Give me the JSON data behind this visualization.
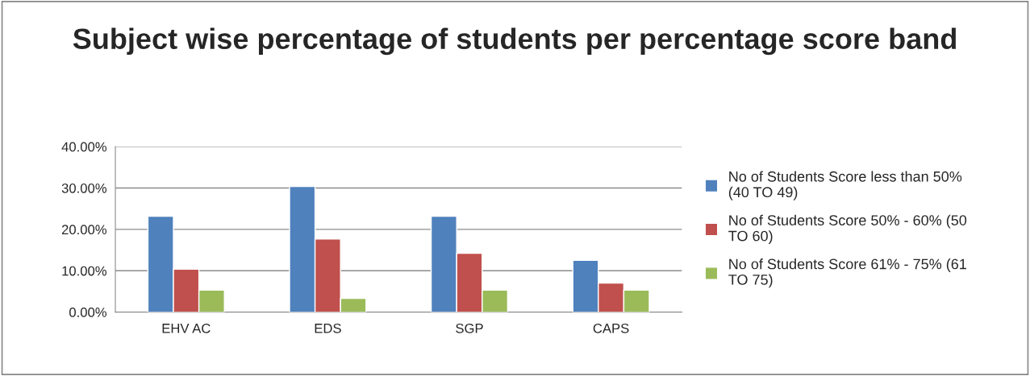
{
  "chart_data": {
    "type": "bar",
    "title": "Subject wise percentage of students per percentage score band",
    "categories": [
      "EHV AC",
      "EDS",
      "SGP",
      "CAPS"
    ],
    "series": [
      {
        "name": "No of Students Score less than 50% (40 TO 49)",
        "color": "#4f81bd",
        "values": [
          23.2,
          30.4,
          23.2,
          12.5
        ]
      },
      {
        "name": "No of Students Score 50% - 60% (50 TO 60)",
        "color": "#c0504d",
        "values": [
          10.4,
          17.7,
          14.2,
          7.0
        ]
      },
      {
        "name": "No of Students Score 61% - 75% (61 TO 75)",
        "color": "#9bbb59",
        "values": [
          5.3,
          3.3,
          5.3,
          5.3
        ]
      }
    ],
    "ylim": [
      0,
      40
    ],
    "yticks": [
      {
        "value": 0,
        "label": "0.00%"
      },
      {
        "value": 10,
        "label": "10.00%"
      },
      {
        "value": 20,
        "label": "20.00%"
      },
      {
        "value": 30,
        "label": "30.00%"
      },
      {
        "value": 40,
        "label": "40.00%"
      }
    ],
    "grid": "y",
    "legend": "right"
  }
}
